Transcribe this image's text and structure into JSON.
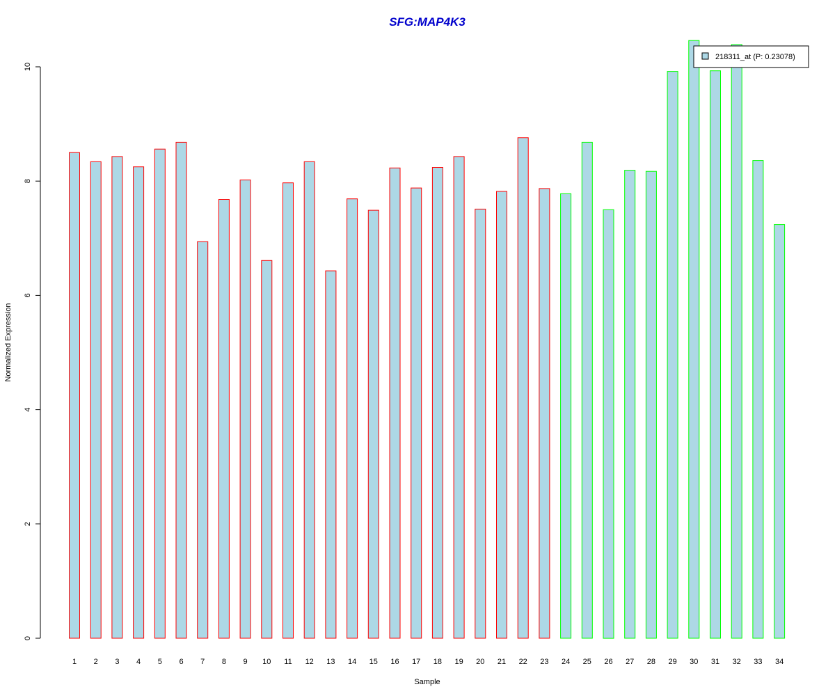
{
  "chart_data": {
    "type": "bar",
    "title": "SFG:MAP4K3",
    "title_color": "#0000cc",
    "xlabel": "Sample",
    "ylabel": "Normalized Expression",
    "ylim": [
      0,
      10.6
    ],
    "yticks": [
      0,
      2,
      4,
      6,
      8,
      10
    ],
    "categories": [
      "1",
      "2",
      "3",
      "4",
      "5",
      "6",
      "7",
      "8",
      "9",
      "10",
      "11",
      "12",
      "13",
      "14",
      "15",
      "16",
      "17",
      "18",
      "19",
      "20",
      "21",
      "22",
      "23",
      "24",
      "25",
      "26",
      "27",
      "28",
      "29",
      "30",
      "31",
      "32",
      "33",
      "34"
    ],
    "values": [
      8.5,
      8.34,
      8.43,
      8.25,
      8.56,
      8.68,
      6.94,
      7.68,
      8.02,
      6.61,
      7.97,
      8.34,
      6.43,
      7.69,
      7.49,
      8.23,
      7.88,
      8.24,
      8.43,
      7.51,
      7.82,
      8.76,
      7.87,
      7.78,
      8.68,
      7.5,
      8.19,
      8.17,
      9.92,
      10.46,
      9.93,
      10.39,
      8.36,
      7.24
    ],
    "groups": [
      "red",
      "red",
      "red",
      "red",
      "red",
      "red",
      "red",
      "red",
      "red",
      "red",
      "red",
      "red",
      "red",
      "red",
      "red",
      "red",
      "red",
      "red",
      "red",
      "red",
      "red",
      "red",
      "red",
      "green",
      "green",
      "green",
      "green",
      "green",
      "green",
      "green",
      "green",
      "green",
      "green",
      "green"
    ],
    "colors": {
      "fill": "#add8e6",
      "red": "#ff0000",
      "green": "#00ff00"
    },
    "legend": {
      "label": "218311_at (P: 0.23078)",
      "placement": "top-right"
    },
    "grid": false
  }
}
